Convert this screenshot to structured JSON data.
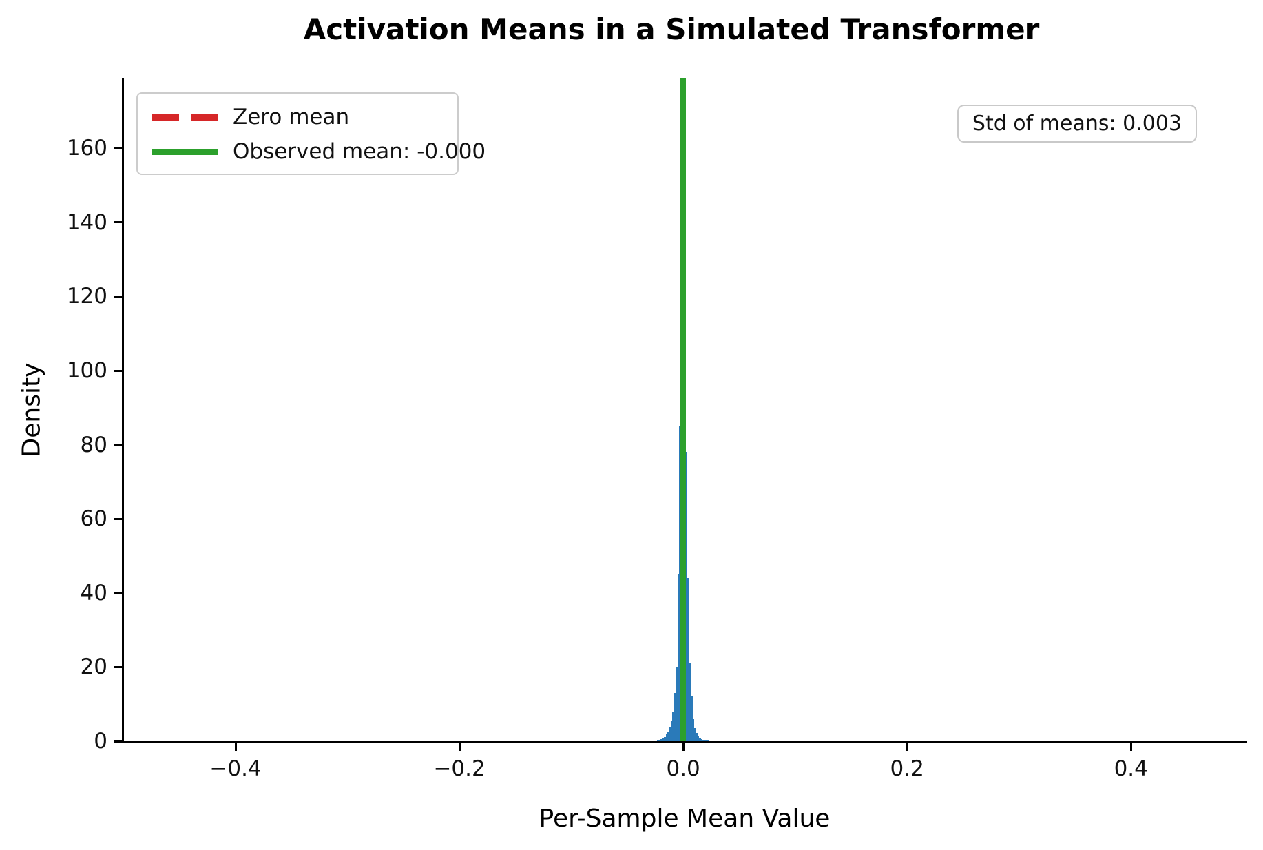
{
  "chart_data": {
    "type": "bar",
    "title": "Activation Means in a Simulated Transformer",
    "xlabel": "Per-Sample Mean Value",
    "ylabel": "Density",
    "xlim": [
      -0.4997,
      0.502
    ],
    "ylim": [
      0,
      179
    ],
    "grid": false,
    "legend_position": "upper left",
    "xticks": [
      {
        "v": -0.4,
        "label": "−0.4"
      },
      {
        "v": -0.2,
        "label": "−0.2"
      },
      {
        "v": 0.0,
        "label": "0.0"
      },
      {
        "v": 0.2,
        "label": "0.2"
      },
      {
        "v": 0.4,
        "label": "0.4"
      }
    ],
    "yticks": [
      {
        "v": 0,
        "label": "0"
      },
      {
        "v": 20,
        "label": "20"
      },
      {
        "v": 40,
        "label": "40"
      },
      {
        "v": 60,
        "label": "60"
      },
      {
        "v": 80,
        "label": "80"
      },
      {
        "v": 100,
        "label": "100"
      },
      {
        "v": 120,
        "label": "120"
      },
      {
        "v": 140,
        "label": "140"
      },
      {
        "v": 160,
        "label": "160"
      }
    ],
    "colors": {
      "histogram": "#2a7ab9",
      "zero_line": "#d62728",
      "observed_line": "#2ca02c"
    },
    "histogram": {
      "bin_width": 0.0015,
      "bin_centers": [
        -0.0225,
        -0.021,
        -0.0195,
        -0.018,
        -0.0165,
        -0.015,
        -0.0135,
        -0.012,
        -0.0105,
        -0.009,
        -0.0075,
        -0.006,
        -0.0045,
        -0.003,
        -0.0015,
        0.0,
        0.0015,
        0.003,
        0.0045,
        0.006,
        0.0075,
        0.009,
        0.0105,
        0.012,
        0.0135,
        0.015,
        0.0165,
        0.018,
        0.0195,
        0.021,
        0.0225
      ],
      "densities": [
        0.2,
        0.3,
        0.5,
        0.8,
        1.2,
        1.8,
        2.6,
        3.8,
        5.5,
        8,
        13,
        20,
        45,
        85,
        135,
        170,
        127,
        78,
        44,
        21,
        12,
        6,
        3.5,
        2.2,
        1.4,
        0.9,
        0.6,
        0.4,
        0.3,
        0.2,
        0.1
      ]
    },
    "lines": [
      {
        "name": "zero-mean",
        "x": 0.0,
        "style": "dashed",
        "color": "#d62728",
        "label": "Zero mean"
      },
      {
        "name": "observed-mean",
        "x": -0.0,
        "style": "solid",
        "color": "#2ca02c",
        "label": "Observed mean: -0.000"
      }
    ],
    "annotation": {
      "text": "Std of means: 0.003",
      "position": "upper right"
    }
  }
}
